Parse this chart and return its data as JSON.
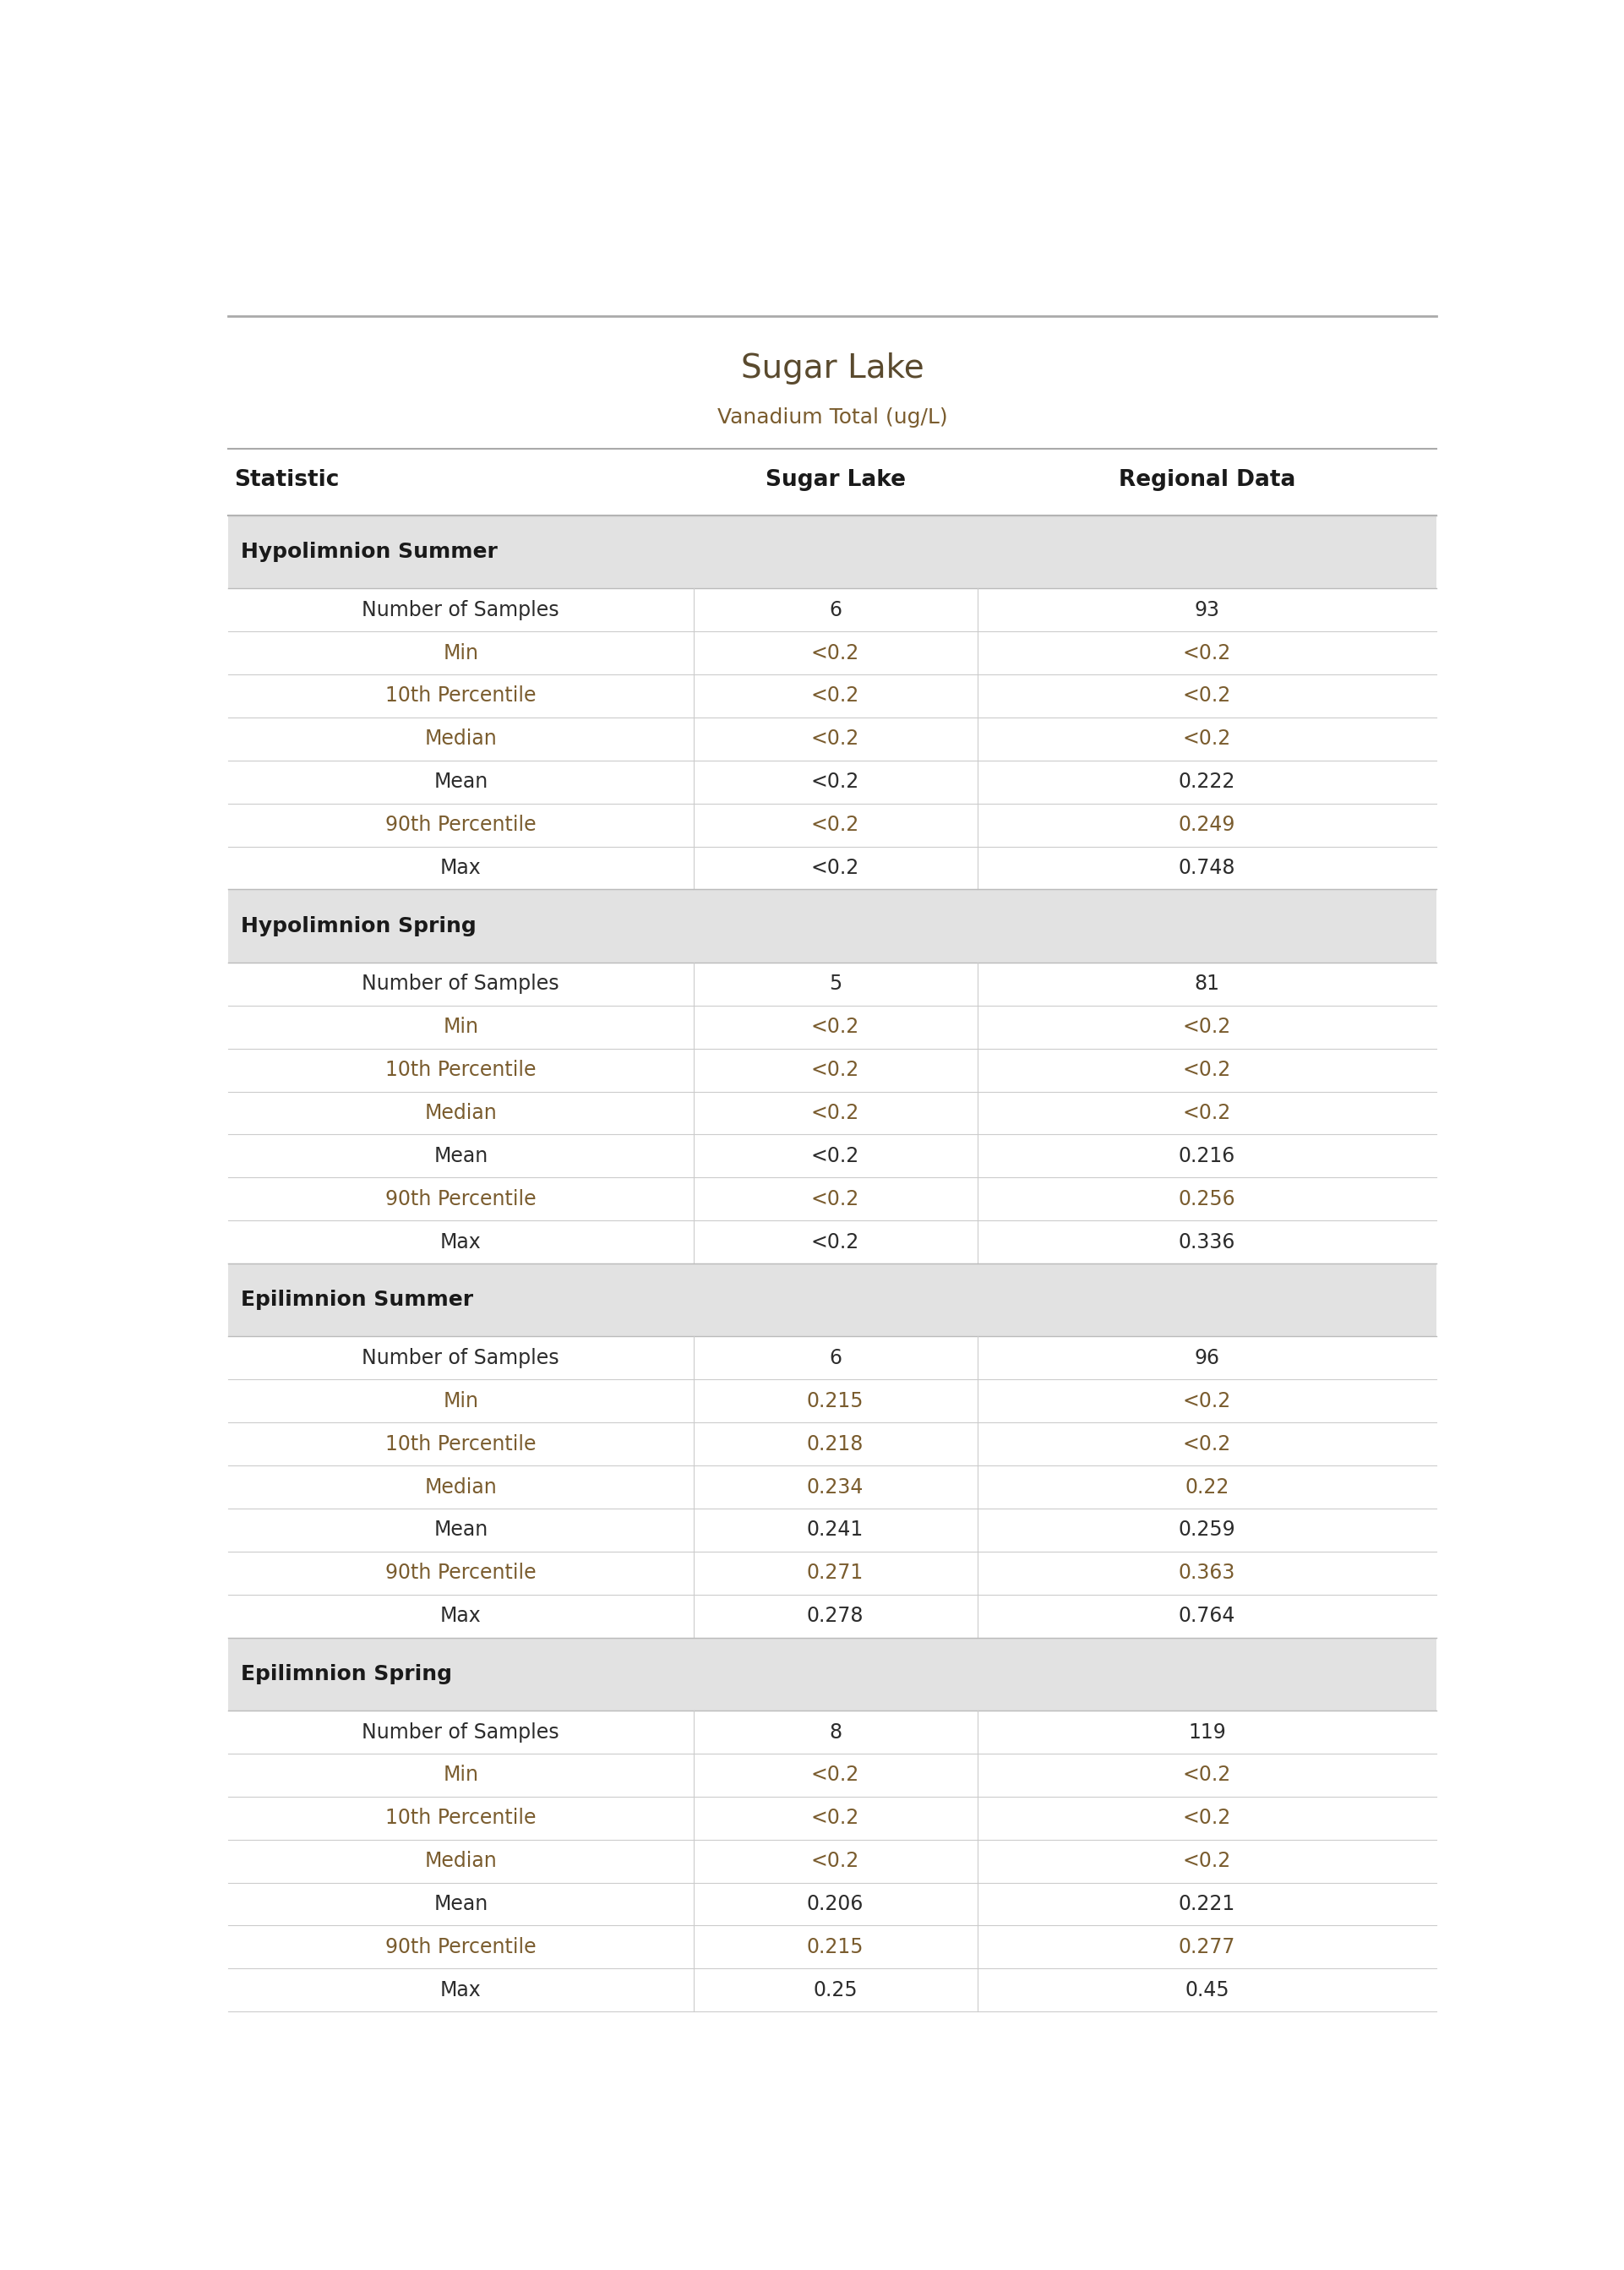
{
  "title": "Sugar Lake",
  "subtitle": "Vanadium Total (ug/L)",
  "col_headers": [
    "Statistic",
    "Sugar Lake",
    "Regional Data"
  ],
  "section_bg_color": "#e2e2e2",
  "text_color_brown": "#7a5c2e",
  "text_color_dark": "#2c2c2c",
  "title_color": "#5a4a2e",
  "subtitle_color": "#7a5c2e",
  "divider_color": "#cccccc",
  "header_divider_color": "#aaaaaa",
  "section_divider_color": "#bbbbbb",
  "top_line_color": "#aaaaaa",
  "rows": [
    {
      "type": "section",
      "label": "Hypolimnion Summer"
    },
    {
      "type": "data",
      "stat": "Number of Samples",
      "lake": "6",
      "regional": "93",
      "stat_color": "dark"
    },
    {
      "type": "data",
      "stat": "Min",
      "lake": "<0.2",
      "regional": "<0.2",
      "stat_color": "brown"
    },
    {
      "type": "data",
      "stat": "10th Percentile",
      "lake": "<0.2",
      "regional": "<0.2",
      "stat_color": "brown"
    },
    {
      "type": "data",
      "stat": "Median",
      "lake": "<0.2",
      "regional": "<0.2",
      "stat_color": "brown"
    },
    {
      "type": "data",
      "stat": "Mean",
      "lake": "<0.2",
      "regional": "0.222",
      "stat_color": "dark"
    },
    {
      "type": "data",
      "stat": "90th Percentile",
      "lake": "<0.2",
      "regional": "0.249",
      "stat_color": "brown"
    },
    {
      "type": "data",
      "stat": "Max",
      "lake": "<0.2",
      "regional": "0.748",
      "stat_color": "dark"
    },
    {
      "type": "section",
      "label": "Hypolimnion Spring"
    },
    {
      "type": "data",
      "stat": "Number of Samples",
      "lake": "5",
      "regional": "81",
      "stat_color": "dark"
    },
    {
      "type": "data",
      "stat": "Min",
      "lake": "<0.2",
      "regional": "<0.2",
      "stat_color": "brown"
    },
    {
      "type": "data",
      "stat": "10th Percentile",
      "lake": "<0.2",
      "regional": "<0.2",
      "stat_color": "brown"
    },
    {
      "type": "data",
      "stat": "Median",
      "lake": "<0.2",
      "regional": "<0.2",
      "stat_color": "brown"
    },
    {
      "type": "data",
      "stat": "Mean",
      "lake": "<0.2",
      "regional": "0.216",
      "stat_color": "dark"
    },
    {
      "type": "data",
      "stat": "90th Percentile",
      "lake": "<0.2",
      "regional": "0.256",
      "stat_color": "brown"
    },
    {
      "type": "data",
      "stat": "Max",
      "lake": "<0.2",
      "regional": "0.336",
      "stat_color": "dark"
    },
    {
      "type": "section",
      "label": "Epilimnion Summer"
    },
    {
      "type": "data",
      "stat": "Number of Samples",
      "lake": "6",
      "regional": "96",
      "stat_color": "dark"
    },
    {
      "type": "data",
      "stat": "Min",
      "lake": "0.215",
      "regional": "<0.2",
      "stat_color": "brown"
    },
    {
      "type": "data",
      "stat": "10th Percentile",
      "lake": "0.218",
      "regional": "<0.2",
      "stat_color": "brown"
    },
    {
      "type": "data",
      "stat": "Median",
      "lake": "0.234",
      "regional": "0.22",
      "stat_color": "brown"
    },
    {
      "type": "data",
      "stat": "Mean",
      "lake": "0.241",
      "regional": "0.259",
      "stat_color": "dark"
    },
    {
      "type": "data",
      "stat": "90th Percentile",
      "lake": "0.271",
      "regional": "0.363",
      "stat_color": "brown"
    },
    {
      "type": "data",
      "stat": "Max",
      "lake": "0.278",
      "regional": "0.764",
      "stat_color": "dark"
    },
    {
      "type": "section",
      "label": "Epilimnion Spring"
    },
    {
      "type": "data",
      "stat": "Number of Samples",
      "lake": "8",
      "regional": "119",
      "stat_color": "dark"
    },
    {
      "type": "data",
      "stat": "Min",
      "lake": "<0.2",
      "regional": "<0.2",
      "stat_color": "brown"
    },
    {
      "type": "data",
      "stat": "10th Percentile",
      "lake": "<0.2",
      "regional": "<0.2",
      "stat_color": "brown"
    },
    {
      "type": "data",
      "stat": "Median",
      "lake": "<0.2",
      "regional": "<0.2",
      "stat_color": "brown"
    },
    {
      "type": "data",
      "stat": "Mean",
      "lake": "0.206",
      "regional": "0.221",
      "stat_color": "dark"
    },
    {
      "type": "data",
      "stat": "90th Percentile",
      "lake": "0.215",
      "regional": "0.277",
      "stat_color": "brown"
    },
    {
      "type": "data",
      "stat": "Max",
      "lake": "0.25",
      "regional": "0.45",
      "stat_color": "dark"
    }
  ],
  "title_fontsize": 28,
  "subtitle_fontsize": 18,
  "header_fontsize": 19,
  "section_fontsize": 18,
  "data_fontsize": 17,
  "col_split1": 0.385,
  "col_split2": 0.62
}
